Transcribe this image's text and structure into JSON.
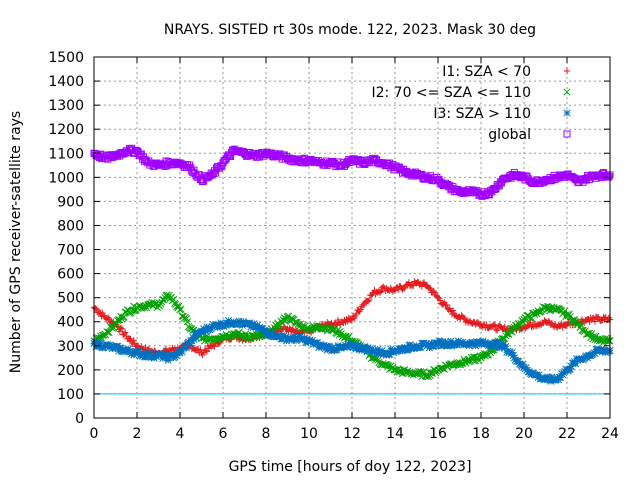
{
  "chart_data": {
    "type": "scatter",
    "title": "NRAYS. SISTED rt 30s mode. 122, 2023. Mask 30 deg",
    "xlabel": "GPS time [hours of doy 122, 2023]",
    "ylabel": "Number of GPS receiver-satellite rays",
    "xlim": [
      0,
      24
    ],
    "ylim": [
      0,
      1500
    ],
    "x_ticks": [
      "0",
      "2",
      "4",
      "6",
      "8",
      "10",
      "12",
      "14",
      "16",
      "18",
      "20",
      "22",
      "24"
    ],
    "y_ticks": [
      "0",
      "100",
      "200",
      "300",
      "400",
      "500",
      "600",
      "700",
      "800",
      "900",
      "1000",
      "1100",
      "1200",
      "1300",
      "1400",
      "1500"
    ],
    "grid": true,
    "legend_position": "top-right",
    "reference_line": {
      "y": 100,
      "color": "#00bfff"
    },
    "series": [
      {
        "name": "I1: SZA < 70",
        "marker": "+",
        "color": "#e41a1c",
        "points": [
          [
            0,
            460
          ],
          [
            0.5,
            420
          ],
          [
            1,
            390
          ],
          [
            1.5,
            340
          ],
          [
            2,
            300
          ],
          [
            2.5,
            280
          ],
          [
            3,
            270
          ],
          [
            3.5,
            280
          ],
          [
            4,
            290
          ],
          [
            4.5,
            300
          ],
          [
            5,
            270
          ],
          [
            5.5,
            300
          ],
          [
            6,
            330
          ],
          [
            6.5,
            340
          ],
          [
            7,
            330
          ],
          [
            7.5,
            340
          ],
          [
            8,
            350
          ],
          [
            8.5,
            370
          ],
          [
            9,
            370
          ],
          [
            9.5,
            350
          ],
          [
            10,
            360
          ],
          [
            10.5,
            380
          ],
          [
            11,
            390
          ],
          [
            11.5,
            400
          ],
          [
            12,
            410
          ],
          [
            12.5,
            470
          ],
          [
            13,
            520
          ],
          [
            13.5,
            540
          ],
          [
            14,
            530
          ],
          [
            14.5,
            550
          ],
          [
            15,
            560
          ],
          [
            15.5,
            550
          ],
          [
            16,
            500
          ],
          [
            16.5,
            450
          ],
          [
            17,
            420
          ],
          [
            17.5,
            400
          ],
          [
            18,
            390
          ],
          [
            18.5,
            380
          ],
          [
            19,
            370
          ],
          [
            19.5,
            370
          ],
          [
            20,
            380
          ],
          [
            20.5,
            390
          ],
          [
            21,
            400
          ],
          [
            21.5,
            380
          ],
          [
            22,
            390
          ],
          [
            22.5,
            400
          ],
          [
            23,
            410
          ],
          [
            23.5,
            410
          ],
          [
            24,
            410
          ]
        ]
      },
      {
        "name": "I2: 70 <= SZA <= 110",
        "marker": "x",
        "color": "#00a000",
        "points": [
          [
            0,
            320
          ],
          [
            0.5,
            350
          ],
          [
            1,
            390
          ],
          [
            1.5,
            440
          ],
          [
            2,
            460
          ],
          [
            2.5,
            470
          ],
          [
            3,
            470
          ],
          [
            3.5,
            510
          ],
          [
            4,
            450
          ],
          [
            4.5,
            370
          ],
          [
            5,
            330
          ],
          [
            5.5,
            330
          ],
          [
            6,
            340
          ],
          [
            6.5,
            350
          ],
          [
            7,
            340
          ],
          [
            7.5,
            340
          ],
          [
            8,
            340
          ],
          [
            8.5,
            380
          ],
          [
            9,
            420
          ],
          [
            9.5,
            390
          ],
          [
            10,
            370
          ],
          [
            10.5,
            380
          ],
          [
            11,
            370
          ],
          [
            11.5,
            350
          ],
          [
            12,
            320
          ],
          [
            12.5,
            290
          ],
          [
            13,
            250
          ],
          [
            13.5,
            220
          ],
          [
            14,
            200
          ],
          [
            14.5,
            190
          ],
          [
            15,
            185
          ],
          [
            15.5,
            180
          ],
          [
            16,
            200
          ],
          [
            16.5,
            220
          ],
          [
            17,
            230
          ],
          [
            17.5,
            240
          ],
          [
            18,
            250
          ],
          [
            18.5,
            280
          ],
          [
            19,
            330
          ],
          [
            19.5,
            370
          ],
          [
            20,
            410
          ],
          [
            20.5,
            430
          ],
          [
            21,
            460
          ],
          [
            21.5,
            450
          ],
          [
            22,
            430
          ],
          [
            22.5,
            390
          ],
          [
            23,
            350
          ],
          [
            23.5,
            320
          ],
          [
            24,
            320
          ]
        ]
      },
      {
        "name": "I3: SZA > 110",
        "marker": "*",
        "color": "#0070c0",
        "points": [
          [
            0,
            310
          ],
          [
            0.5,
            300
          ],
          [
            1,
            290
          ],
          [
            1.5,
            280
          ],
          [
            2,
            270
          ],
          [
            2.5,
            260
          ],
          [
            3,
            260
          ],
          [
            3.5,
            250
          ],
          [
            4,
            270
          ],
          [
            4.5,
            320
          ],
          [
            5,
            360
          ],
          [
            5.5,
            380
          ],
          [
            6,
            390
          ],
          [
            6.5,
            400
          ],
          [
            7,
            390
          ],
          [
            7.5,
            380
          ],
          [
            8,
            360
          ],
          [
            8.5,
            340
          ],
          [
            9,
            330
          ],
          [
            9.5,
            330
          ],
          [
            10,
            320
          ],
          [
            10.5,
            300
          ],
          [
            11,
            290
          ],
          [
            11.5,
            290
          ],
          [
            12,
            300
          ],
          [
            12.5,
            290
          ],
          [
            13,
            280
          ],
          [
            13.5,
            270
          ],
          [
            14,
            280
          ],
          [
            14.5,
            290
          ],
          [
            15,
            300
          ],
          [
            15.5,
            300
          ],
          [
            16,
            310
          ],
          [
            16.5,
            310
          ],
          [
            17,
            310
          ],
          [
            17.5,
            310
          ],
          [
            18,
            310
          ],
          [
            18.5,
            310
          ],
          [
            19,
            300
          ],
          [
            19.5,
            260
          ],
          [
            20,
            210
          ],
          [
            20.5,
            180
          ],
          [
            21,
            160
          ],
          [
            21.5,
            160
          ],
          [
            22,
            200
          ],
          [
            22.5,
            240
          ],
          [
            23,
            260
          ],
          [
            23.5,
            280
          ],
          [
            24,
            280
          ]
        ]
      },
      {
        "name": "global",
        "marker": "square",
        "color": "#a000ff",
        "points": [
          [
            0,
            1100
          ],
          [
            0.5,
            1080
          ],
          [
            1,
            1090
          ],
          [
            1.5,
            1110
          ],
          [
            2,
            1110
          ],
          [
            2.5,
            1060
          ],
          [
            3,
            1050
          ],
          [
            3.5,
            1060
          ],
          [
            4,
            1060
          ],
          [
            4.5,
            1040
          ],
          [
            5,
            990
          ],
          [
            5.5,
            1010
          ],
          [
            6,
            1060
          ],
          [
            6.5,
            1110
          ],
          [
            7,
            1100
          ],
          [
            7.5,
            1090
          ],
          [
            8,
            1100
          ],
          [
            8.5,
            1090
          ],
          [
            9,
            1080
          ],
          [
            9.5,
            1070
          ],
          [
            10,
            1070
          ],
          [
            10.5,
            1060
          ],
          [
            11,
            1060
          ],
          [
            11.5,
            1050
          ],
          [
            12,
            1070
          ],
          [
            12.5,
            1060
          ],
          [
            13,
            1070
          ],
          [
            13.5,
            1060
          ],
          [
            14,
            1040
          ],
          [
            14.5,
            1020
          ],
          [
            15,
            1010
          ],
          [
            15.5,
            1000
          ],
          [
            16,
            990
          ],
          [
            16.5,
            960
          ],
          [
            17,
            940
          ],
          [
            17.5,
            940
          ],
          [
            18,
            930
          ],
          [
            18.5,
            940
          ],
          [
            19,
            990
          ],
          [
            19.5,
            1010
          ],
          [
            20,
            1000
          ],
          [
            20.5,
            980
          ],
          [
            21,
            990
          ],
          [
            21.5,
            1000
          ],
          [
            22,
            1010
          ],
          [
            22.5,
            980
          ],
          [
            23,
            1000
          ],
          [
            23.5,
            1010
          ],
          [
            24,
            1010
          ]
        ]
      }
    ]
  }
}
